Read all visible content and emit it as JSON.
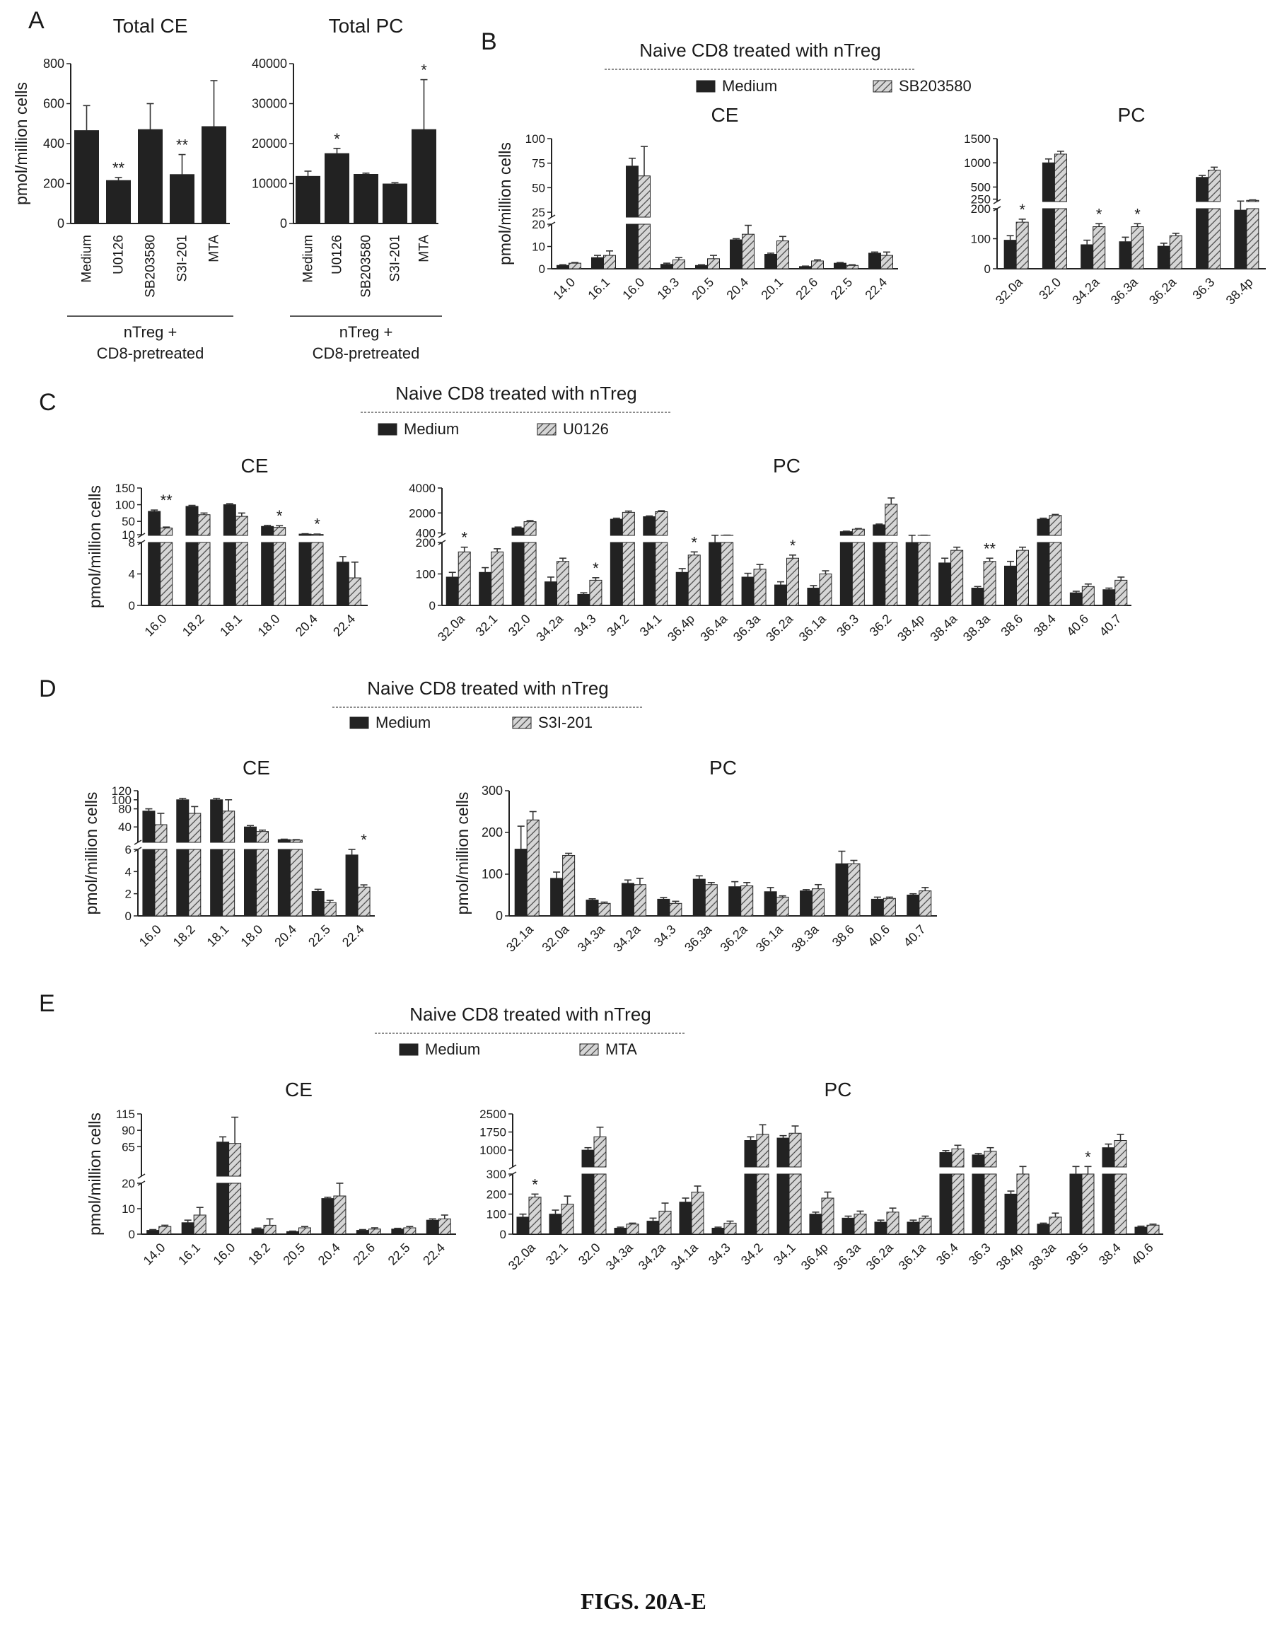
{
  "figure_caption": "FIGS. 20A-E",
  "colors": {
    "medium": "#222222",
    "treated_fill": "#d6d6d6",
    "treated_hatch": "#444444",
    "axis": "#222222"
  },
  "chart_data": [
    {
      "id": "A1",
      "panel_letter": "A",
      "type": "bar",
      "title": "Total CE",
      "ylabel": "pmol/million cells",
      "ylim": [
        0,
        800
      ],
      "yticks": [
        0,
        200,
        400,
        600,
        800
      ],
      "categories": [
        "Medium",
        "U0126",
        "SB203580",
        "S3I-201",
        "MTA"
      ],
      "series": [
        {
          "values": [
            465,
            215,
            470,
            245,
            485
          ],
          "errors": [
            125,
            15,
            130,
            100,
            230
          ]
        }
      ],
      "annotations": [
        "",
        "**",
        "",
        "**",
        ""
      ],
      "group_label": [
        "nTreg +",
        "CD8-pretreated"
      ]
    },
    {
      "id": "A2",
      "type": "bar",
      "title": "Total PC",
      "ylim": [
        0,
        40000
      ],
      "yticks": [
        0,
        10000,
        20000,
        30000,
        40000
      ],
      "categories": [
        "Medium",
        "U0126",
        "SB203580",
        "S3I-201",
        "MTA"
      ],
      "series": [
        {
          "values": [
            11800,
            17500,
            12300,
            9900,
            23500
          ],
          "errors": [
            1300,
            1300,
            300,
            300,
            12500
          ]
        }
      ],
      "annotations": [
        "",
        "*",
        "",
        "",
        "*"
      ],
      "group_label": [
        "nTreg +",
        "CD8-pretreated"
      ]
    },
    {
      "id": "B1",
      "panel_letter": "B",
      "type": "bar",
      "title": "CE",
      "header": "Naive CD8 treated with nTreg",
      "legend": [
        "Medium",
        "SB203580"
      ],
      "ylabel": "pmol/million cells",
      "y_segments": [
        {
          "range": [
            0,
            20
          ],
          "ticks": [
            0,
            10,
            20
          ]
        },
        {
          "range": [
            20,
            100
          ],
          "ticks": [
            25,
            50,
            75,
            100
          ]
        }
      ],
      "categories": [
        "14.0",
        "16.1",
        "16.0",
        "18.3",
        "20.5",
        "20.4",
        "20.1",
        "22.6",
        "22.5",
        "22.4"
      ],
      "series": [
        {
          "name": "Medium",
          "values": [
            1.5,
            5,
            72,
            2,
            1.5,
            13,
            6.5,
            1,
            2.5,
            7
          ],
          "errors": [
            0.3,
            1,
            8,
            0.5,
            0.3,
            0.5,
            0.5,
            0.2,
            0.3,
            0.5
          ]
        },
        {
          "name": "SB203580",
          "values": [
            2.5,
            6,
            62,
            4,
            4.5,
            15.5,
            12.5,
            3.5,
            1.5,
            6
          ],
          "errors": [
            0.3,
            2,
            30,
            1,
            1.5,
            4,
            2,
            0.5,
            0.3,
            1.5
          ]
        }
      ],
      "annotations": [
        "",
        "",
        "",
        "",
        "",
        "",
        "",
        "",
        "",
        ""
      ]
    },
    {
      "id": "B2",
      "type": "bar",
      "title": "PC",
      "y_segments": [
        {
          "range": [
            0,
            200
          ],
          "ticks": [
            0,
            100,
            200
          ]
        },
        {
          "range": [
            200,
            1500
          ],
          "ticks": [
            250,
            500,
            1000,
            1500
          ]
        }
      ],
      "categories": [
        "32.0a",
        "32.0",
        "34.2a",
        "36.3a",
        "36.2a",
        "36.3",
        "38.4p"
      ],
      "series": [
        {
          "name": "Medium",
          "values": [
            95,
            1000,
            80,
            90,
            75,
            700,
            195
          ],
          "errors": [
            15,
            80,
            15,
            15,
            10,
            40,
            15
          ]
        },
        {
          "name": "SB203580",
          "values": [
            155,
            1180,
            140,
            140,
            110,
            850,
            225
          ],
          "errors": [
            10,
            60,
            10,
            10,
            8,
            60,
            10
          ]
        }
      ],
      "annotations": [
        "*",
        "",
        "*",
        "*",
        "",
        "",
        ""
      ]
    },
    {
      "id": "C1",
      "panel_letter": "C",
      "type": "bar",
      "title": "CE",
      "header": "Naive CD8 treated with nTreg",
      "legend": [
        "Medium",
        "U0126"
      ],
      "ylabel": "pmol/million cells",
      "y_segments": [
        {
          "range": [
            0,
            8
          ],
          "ticks": [
            0,
            4,
            8
          ]
        },
        {
          "range": [
            8,
            150
          ],
          "ticks": [
            10,
            50,
            100,
            150
          ]
        }
      ],
      "categories": [
        "16.0",
        "18.2",
        "18.1",
        "18.0",
        "20.4",
        "22.4"
      ],
      "series": [
        {
          "name": "Medium",
          "values": [
            80,
            95,
            100,
            35,
            12,
            5.5
          ],
          "errors": [
            4,
            3,
            3,
            3,
            1,
            0.7
          ]
        },
        {
          "name": "U0126",
          "values": [
            30,
            70,
            65,
            32,
            11,
            3.5
          ],
          "errors": [
            3,
            5,
            10,
            5,
            1,
            2
          ]
        }
      ],
      "annotations": [
        "**",
        "",
        "",
        "*",
        "*",
        ""
      ]
    },
    {
      "id": "C2",
      "type": "bar",
      "title": "PC",
      "y_segments": [
        {
          "range": [
            0,
            200
          ],
          "ticks": [
            0,
            100,
            200
          ]
        },
        {
          "range": [
            200,
            4000
          ],
          "ticks": [
            400,
            2000,
            4000
          ]
        }
      ],
      "categories": [
        "32.0a",
        "32.1",
        "32.0",
        "34.2a",
        "34.3",
        "34.2",
        "34.1",
        "36.4p",
        "36.4a",
        "36.3a",
        "36.2a",
        "36.1a",
        "36.3",
        "36.2",
        "38.4p",
        "38.4a",
        "38.3a",
        "38.6",
        "38.4",
        "40.6",
        "40.7"
      ],
      "series": [
        {
          "name": "Medium",
          "values": [
            90,
            105,
            800,
            75,
            35,
            1500,
            1700,
            105,
            200,
            90,
            65,
            55,
            500,
            1050,
            200,
            135,
            55,
            125,
            1500,
            40,
            50
          ],
          "errors": [
            15,
            15,
            70,
            15,
            5,
            80,
            60,
            12,
            10,
            12,
            10,
            8,
            40,
            60,
            10,
            15,
            5,
            15,
            80,
            5,
            5
          ]
        },
        {
          "name": "U0126",
          "values": [
            170,
            170,
            1300,
            140,
            80,
            2050,
            2100,
            160,
            210,
            115,
            150,
            100,
            700,
            2700,
            205,
            175,
            140,
            175,
            1800,
            60,
            80
          ],
          "errors": [
            15,
            10,
            90,
            10,
            8,
            100,
            80,
            10,
            10,
            15,
            10,
            10,
            50,
            500,
            10,
            10,
            10,
            10,
            80,
            8,
            10
          ]
        }
      ],
      "annotations": [
        "*",
        "",
        "",
        "",
        "*",
        "",
        "",
        "*",
        "",
        "",
        "*",
        "",
        "",
        "",
        "",
        "",
        "**",
        "",
        "",
        "",
        ""
      ]
    },
    {
      "id": "D1",
      "panel_letter": "D",
      "type": "bar",
      "title": "CE",
      "header": "Naive CD8 treated with nTreg",
      "legend": [
        "Medium",
        "S3I-201"
      ],
      "ylabel": "pmol/million cells",
      "y_segments": [
        {
          "range": [
            0,
            6
          ],
          "ticks": [
            0,
            2,
            4,
            6
          ]
        },
        {
          "range": [
            6,
            120
          ],
          "ticks": [
            40,
            80,
            100,
            120
          ]
        }
      ],
      "categories": [
        "16.0",
        "18.2",
        "18.1",
        "18.0",
        "20.4",
        "22.5",
        "22.4"
      ],
      "series": [
        {
          "name": "Medium",
          "values": [
            75,
            100,
            100,
            40,
            12,
            2.2,
            5.5
          ],
          "errors": [
            5,
            3,
            3,
            3,
            1,
            0.2,
            0.5
          ]
        },
        {
          "name": "S3I-201",
          "values": [
            45,
            70,
            75,
            30,
            11,
            1.2,
            2.6
          ],
          "errors": [
            25,
            15,
            25,
            3,
            1,
            0.2,
            0.2
          ]
        }
      ],
      "annotations": [
        "",
        "",
        "",
        "",
        "",
        "",
        "*"
      ]
    },
    {
      "id": "D2",
      "type": "bar",
      "title": "PC",
      "ylabel": "pmol/million cells",
      "ylim": [
        0,
        300
      ],
      "yticks": [
        0,
        100,
        200,
        300
      ],
      "categories": [
        "32.1a",
        "32.0a",
        "34.3a",
        "34.2a",
        "34.3",
        "36.3a",
        "36.2a",
        "36.1a",
        "38.3a",
        "38.6",
        "40.6",
        "40.7"
      ],
      "series": [
        {
          "name": "Medium",
          "values": [
            160,
            90,
            38,
            78,
            40,
            88,
            70,
            58,
            60,
            125,
            40,
            50
          ],
          "errors": [
            55,
            15,
            3,
            8,
            4,
            8,
            12,
            10,
            3,
            30,
            5,
            3
          ]
        },
        {
          "name": "S3I-201",
          "values": [
            230,
            145,
            30,
            75,
            30,
            75,
            72,
            45,
            65,
            125,
            42,
            60
          ],
          "errors": [
            20,
            5,
            3,
            15,
            5,
            5,
            8,
            3,
            10,
            8,
            3,
            8
          ]
        }
      ],
      "annotations": [
        "",
        "",
        "",
        "",
        "",
        "",
        "",
        "",
        "",
        "",
        "",
        ""
      ]
    },
    {
      "id": "E1",
      "panel_letter": "E",
      "type": "bar",
      "title": "CE",
      "header": "Naive CD8 treated with nTreg",
      "legend": [
        "Medium",
        "MTA"
      ],
      "ylabel": "pmol/million cells",
      "y_segments": [
        {
          "range": [
            0,
            20
          ],
          "ticks": [
            0,
            10,
            20
          ]
        },
        {
          "range": [
            20,
            115
          ],
          "ticks": [
            65,
            90,
            115
          ]
        }
      ],
      "categories": [
        "14.0",
        "16.1",
        "16.0",
        "18.2",
        "20.5",
        "20.4",
        "22.6",
        "22.5",
        "22.4"
      ],
      "series": [
        {
          "name": "Medium",
          "values": [
            1.5,
            4.5,
            72,
            2,
            1,
            14,
            1.5,
            2,
            5.5
          ],
          "errors": [
            0.3,
            1,
            8,
            0.4,
            0.2,
            0.5,
            0.3,
            0.3,
            0.5
          ]
        },
        {
          "name": "MTA",
          "values": [
            3,
            7.5,
            70,
            3.5,
            2.5,
            15,
            2,
            2.5,
            6
          ],
          "errors": [
            0.5,
            3,
            40,
            2.5,
            0.5,
            5,
            0.5,
            0.5,
            1.5
          ]
        }
      ],
      "annotations": [
        "",
        "",
        "",
        "",
        "",
        "",
        "",
        "",
        ""
      ]
    },
    {
      "id": "E2",
      "type": "bar",
      "title": "PC",
      "y_segments": [
        {
          "range": [
            0,
            300
          ],
          "ticks": [
            0,
            100,
            200,
            300
          ]
        },
        {
          "range": [
            300,
            2500
          ],
          "ticks": [
            1000,
            1750,
            2500
          ]
        }
      ],
      "categories": [
        "32.0a",
        "32.1",
        "32.0",
        "34.3a",
        "34.2a",
        "34.1a",
        "34.3",
        "34.2",
        "34.1",
        "36.4p",
        "36.3a",
        "36.2a",
        "36.1a",
        "36.4",
        "36.3",
        "38.4p",
        "38.3a",
        "38.5",
        "38.4",
        "40.6"
      ],
      "series": [
        {
          "name": "Medium",
          "values": [
            85,
            100,
            1000,
            30,
            65,
            160,
            30,
            1400,
            1500,
            100,
            80,
            60,
            60,
            900,
            800,
            200,
            50,
            300,
            1100,
            35
          ],
          "errors": [
            15,
            20,
            100,
            5,
            15,
            20,
            5,
            150,
            100,
            10,
            10,
            10,
            10,
            80,
            60,
            15,
            5,
            20,
            150,
            5
          ]
        },
        {
          "name": "MTA",
          "values": [
            185,
            150,
            1550,
            50,
            115,
            210,
            55,
            1650,
            1700,
            180,
            100,
            110,
            80,
            1050,
            950,
            300,
            85,
            300,
            1400,
            45
          ],
          "errors": [
            15,
            40,
            400,
            5,
            40,
            30,
            10,
            400,
            300,
            30,
            15,
            20,
            10,
            150,
            150,
            20,
            20,
            20,
            250,
            5
          ]
        }
      ],
      "annotations": [
        "*",
        "",
        "",
        "",
        "",
        "",
        "",
        "",
        "",
        "",
        "",
        "",
        "",
        "",
        "",
        "",
        "",
        "*",
        "",
        ""
      ]
    }
  ]
}
